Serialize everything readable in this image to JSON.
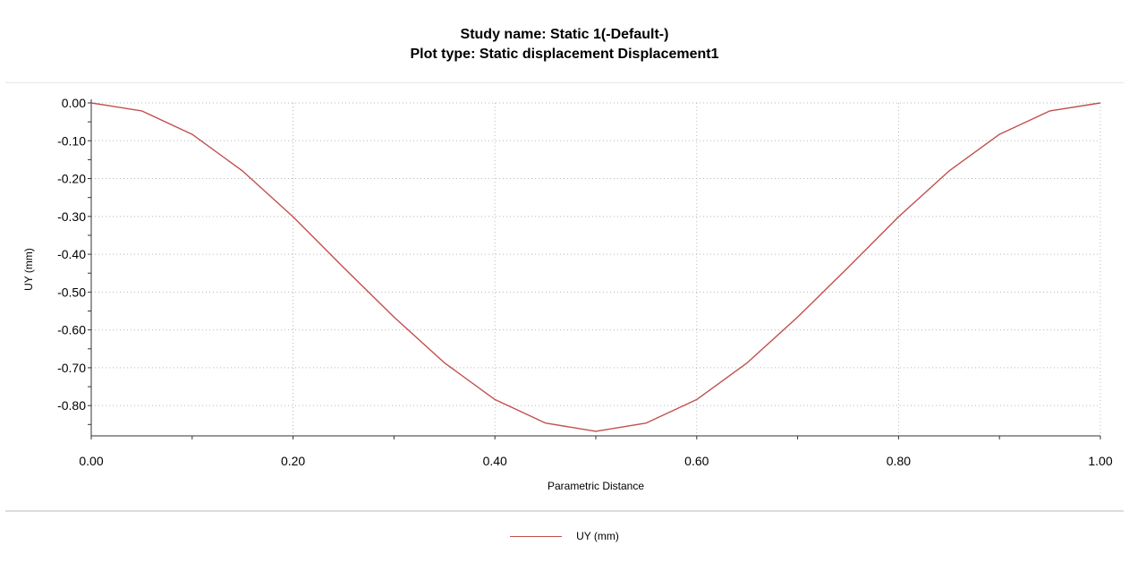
{
  "header": {
    "title": "Study name: Static 1(-Default-)",
    "subtitle": "Plot type: Static displacement Displacement1"
  },
  "chart_data": {
    "type": "line",
    "title": "Study name: Static 1(-Default-)",
    "subtitle": "Plot type: Static displacement Displacement1",
    "xlabel": "Parametric Distance",
    "ylabel": "UY (mm)",
    "xlim": [
      0,
      1
    ],
    "ylim": [
      -0.88,
      0.0
    ],
    "x_ticks": [
      "0.00",
      "0.20",
      "0.40",
      "0.60",
      "0.80",
      "1.00"
    ],
    "y_ticks": [
      "0.00",
      "-0.10",
      "-0.20",
      "-0.30",
      "-0.40",
      "-0.50",
      "-0.60",
      "-0.70",
      "-0.80"
    ],
    "grid": true,
    "legend_position": "bottom-center",
    "series": [
      {
        "name": "UY (mm)",
        "color": "#c0504d",
        "x": [
          0.0,
          0.05,
          0.1,
          0.15,
          0.2,
          0.25,
          0.3,
          0.35,
          0.4,
          0.45,
          0.5,
          0.55,
          0.6,
          0.65,
          0.7,
          0.75,
          0.8,
          0.85,
          0.9,
          0.95,
          1.0
        ],
        "y": [
          0.0,
          -0.021,
          -0.083,
          -0.18,
          -0.301,
          -0.435,
          -0.566,
          -0.687,
          -0.784,
          -0.846,
          -0.868,
          -0.846,
          -0.784,
          -0.687,
          -0.566,
          -0.435,
          -0.301,
          -0.18,
          -0.083,
          -0.021,
          0.0
        ]
      }
    ]
  }
}
